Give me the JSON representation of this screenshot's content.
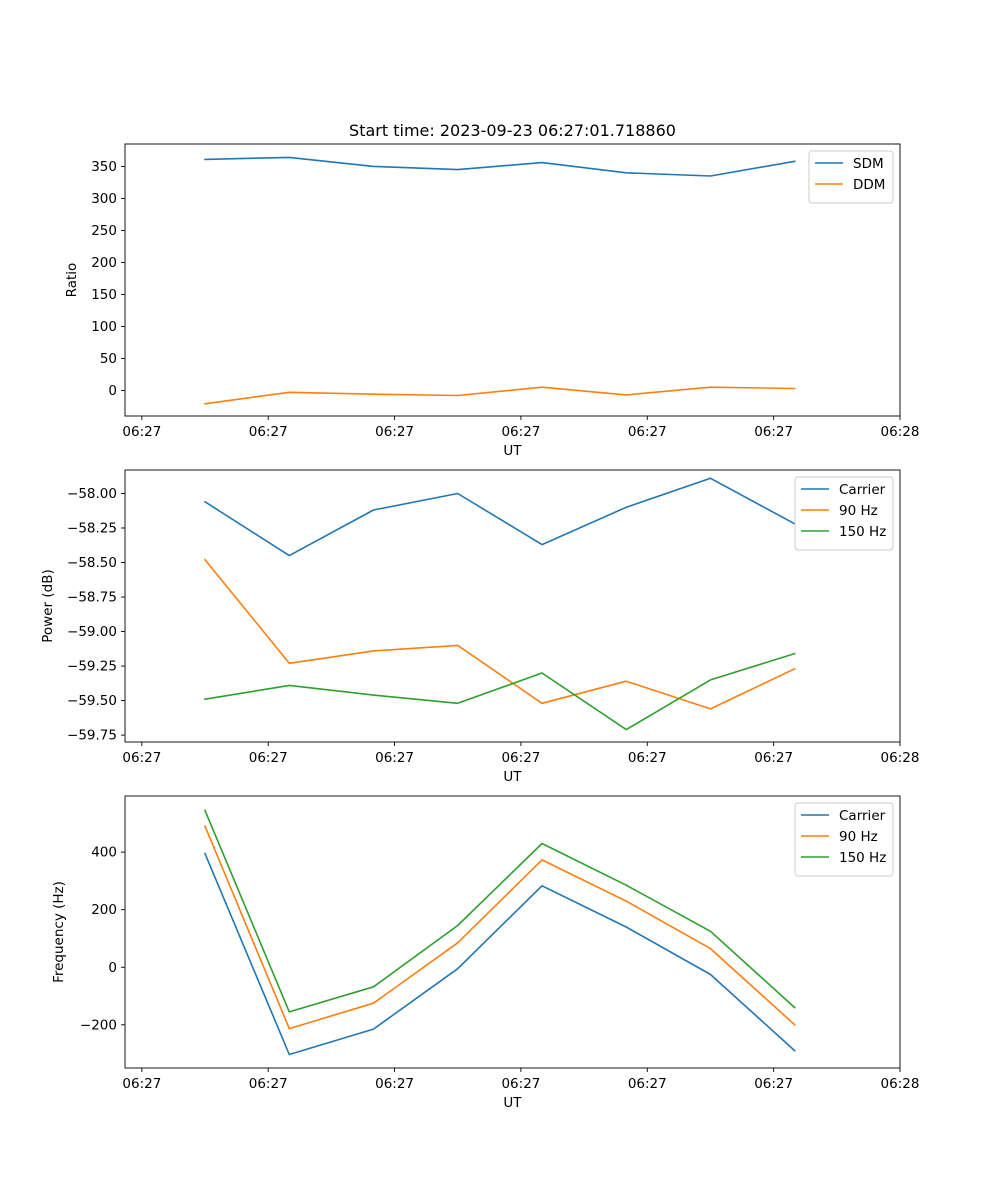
{
  "chart_data": [
    {
      "type": "line",
      "title": "Start time: 2023-09-23 06:27:01.718860",
      "xlabel": "UT",
      "ylabel": "Ratio",
      "xlim": [
        -0.2,
        9.0
      ],
      "ylim": [
        -40,
        385
      ],
      "x": [
        0.75,
        1.75,
        2.75,
        3.75,
        4.75,
        5.75,
        6.75,
        7.75
      ],
      "xticks": [
        0,
        1.5,
        3,
        4.5,
        6,
        7.5,
        9
      ],
      "xtick_labels": [
        "06:27",
        "06:27",
        "06:27",
        "06:27",
        "06:27",
        "06:27",
        "06:28"
      ],
      "yticks": [
        0,
        50,
        100,
        150,
        200,
        250,
        300,
        350
      ],
      "ytick_labels": [
        "0",
        "50",
        "100",
        "150",
        "200",
        "250",
        "300",
        "350"
      ],
      "legend_position": "top-right",
      "series": [
        {
          "name": "SDM",
          "color": "#1f77b4",
          "values": [
            361,
            364,
            350,
            345,
            356,
            340,
            335,
            358
          ]
        },
        {
          "name": "DDM",
          "color": "#ff7f0e",
          "values": [
            -21,
            -3,
            -6,
            -8,
            5,
            -7,
            5,
            3
          ]
        }
      ]
    },
    {
      "type": "line",
      "title": "",
      "xlabel": "UT",
      "ylabel": "Power (dB)",
      "xlim": [
        -0.2,
        9.0
      ],
      "ylim": [
        -59.8,
        -57.83
      ],
      "x": [
        0.75,
        1.75,
        2.75,
        3.75,
        4.75,
        5.75,
        6.75,
        7.75
      ],
      "xticks": [
        0,
        1.5,
        3,
        4.5,
        6,
        7.5,
        9
      ],
      "xtick_labels": [
        "06:27",
        "06:27",
        "06:27",
        "06:27",
        "06:27",
        "06:27",
        "06:28"
      ],
      "yticks": [
        -59.75,
        -59.5,
        -59.25,
        -59.0,
        -58.75,
        -58.5,
        -58.25,
        -58.0
      ],
      "ytick_labels": [
        "−59.75",
        "−59.50",
        "−59.25",
        "−59.00",
        "−58.75",
        "−58.50",
        "−58.25",
        "−58.00"
      ],
      "legend_position": "top-right",
      "series": [
        {
          "name": "Carrier",
          "color": "#1f77b4",
          "values": [
            -58.06,
            -58.45,
            -58.12,
            -58.0,
            -58.37,
            -58.1,
            -57.89,
            -58.22
          ]
        },
        {
          "name": "90 Hz",
          "color": "#ff7f0e",
          "values": [
            -58.48,
            -59.23,
            -59.14,
            -59.1,
            -59.52,
            -59.36,
            -59.56,
            -59.27
          ]
        },
        {
          "name": "150 Hz",
          "color": "#2ca02c",
          "values": [
            -59.49,
            -59.39,
            -59.46,
            -59.52,
            -59.3,
            -59.71,
            -59.35,
            -59.16
          ]
        }
      ]
    },
    {
      "type": "line",
      "title": "",
      "xlabel": "UT",
      "ylabel": "Frequency (Hz)",
      "xlim": [
        -0.2,
        9.0
      ],
      "ylim": [
        -350,
        595
      ],
      "x": [
        0.75,
        1.75,
        2.75,
        3.75,
        4.75,
        5.75,
        6.75,
        7.75
      ],
      "xticks": [
        0,
        1.5,
        3,
        4.5,
        6,
        7.5,
        9
      ],
      "xtick_labels": [
        "06:27",
        "06:27",
        "06:27",
        "06:27",
        "06:27",
        "06:27",
        "06:28"
      ],
      "yticks": [
        -200,
        0,
        200,
        400
      ],
      "ytick_labels": [
        "−200",
        "0",
        "200",
        "400"
      ],
      "legend_position": "top-right",
      "series": [
        {
          "name": "Carrier",
          "color": "#1f77b4",
          "values": [
            395,
            -303,
            -215,
            -5,
            283,
            140,
            -25,
            -290
          ]
        },
        {
          "name": "90 Hz",
          "color": "#ff7f0e",
          "values": [
            490,
            -213,
            -125,
            85,
            373,
            230,
            65,
            -200
          ]
        },
        {
          "name": "150 Hz",
          "color": "#2ca02c",
          "values": [
            545,
            -155,
            -68,
            145,
            430,
            285,
            125,
            -140
          ]
        }
      ]
    }
  ]
}
